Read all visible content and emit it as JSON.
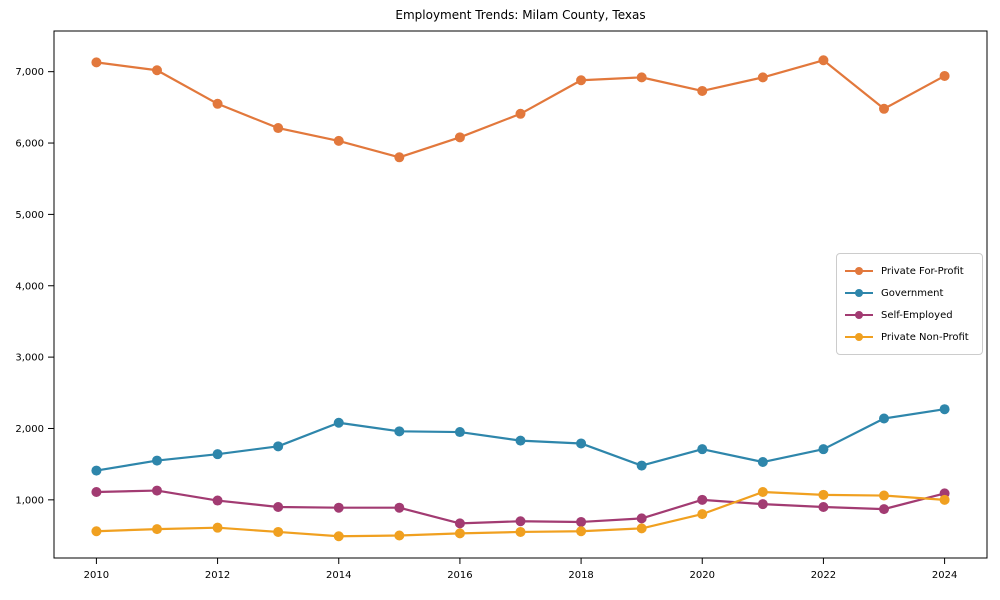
{
  "chart_data": {
    "type": "line",
    "title": "Employment Trends: Milam County, Texas",
    "xlabel": "",
    "ylabel": "",
    "grid": false,
    "legend_position": "center right",
    "x": [
      2010,
      2011,
      2012,
      2013,
      2014,
      2015,
      2016,
      2017,
      2018,
      2019,
      2020,
      2021,
      2022,
      2023,
      2024
    ],
    "x_ticks": [
      2010,
      2012,
      2014,
      2016,
      2018,
      2020,
      2022,
      2024
    ],
    "y_ticks": [
      1000,
      2000,
      3000,
      4000,
      5000,
      6000,
      7000
    ],
    "y_tick_labels": [
      "1,000",
      "2,000",
      "3,000",
      "4,000",
      "5,000",
      "6,000",
      "7,000"
    ],
    "ylim": [
      185,
      7570
    ],
    "xlim": [
      2009.3,
      2024.7
    ],
    "series": [
      {
        "name": "Private For-Profit",
        "color": "#E2783C",
        "values": [
          7130,
          7020,
          6550,
          6210,
          6030,
          5800,
          6080,
          6410,
          6880,
          6920,
          6730,
          6920,
          7160,
          6480,
          6940
        ]
      },
      {
        "name": "Government",
        "color": "#2E86AB",
        "values": [
          1410,
          1550,
          1640,
          1750,
          2080,
          1960,
          1950,
          1830,
          1790,
          1480,
          1710,
          1530,
          1710,
          2140,
          2270
        ]
      },
      {
        "name": "Self-Employed",
        "color": "#A23B72",
        "values": [
          1110,
          1130,
          990,
          900,
          890,
          890,
          670,
          700,
          690,
          740,
          1000,
          940,
          900,
          870,
          1090
        ]
      },
      {
        "name": "Private Non-Profit",
        "color": "#F0A020",
        "values": [
          560,
          590,
          610,
          550,
          490,
          500,
          530,
          550,
          560,
          600,
          800,
          1110,
          1070,
          1060,
          1000
        ]
      }
    ]
  }
}
